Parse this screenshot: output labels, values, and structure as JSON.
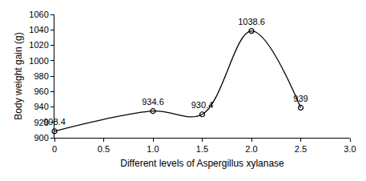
{
  "chart_data": {
    "type": "line",
    "x_label": "Different levels of Aspergillus xylanase",
    "y_label": "Body weight gain (g)",
    "x": [
      0,
      1,
      1.5,
      2,
      2.5
    ],
    "values": [
      908.4,
      934.6,
      930.4,
      1038.6,
      939
    ],
    "color": "#000000",
    "marker": "circle-open",
    "line_style": "smooth",
    "data_labels": true,
    "xlim": [
      0,
      3
    ],
    "xticks": [
      0,
      0.5,
      {
        "value": 1,
        "label": "1.0"
      },
      1.5,
      {
        "value": 2,
        "label": "2.0"
      },
      2.5,
      {
        "value": 3,
        "label": "3.0"
      }
    ],
    "ylim": [
      900,
      1060
    ],
    "yticks": [
      900,
      920,
      940,
      960,
      980,
      1000,
      1020,
      1040,
      1060
    ],
    "grid": false
  }
}
